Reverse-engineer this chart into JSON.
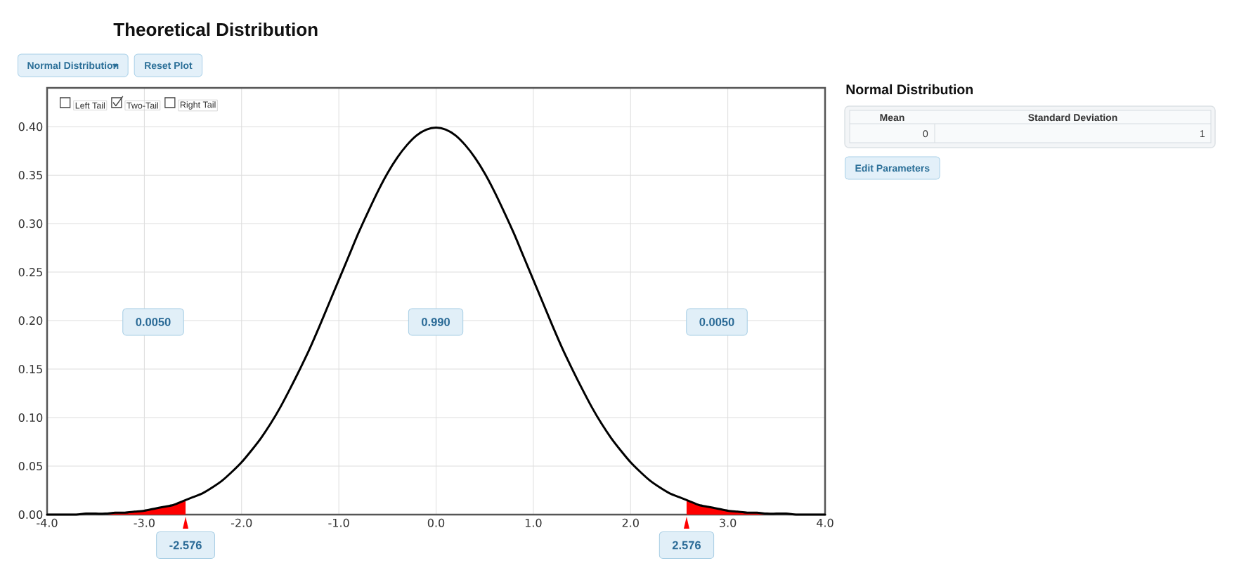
{
  "chart_data": [
    {
      "type": "line",
      "title": "Theoretical Distribution",
      "series": [
        {
          "color": "#000000",
          "x": [
            -4.0,
            -3.9,
            -3.8,
            -3.7,
            -3.6,
            -3.5,
            -3.4,
            -3.3,
            -3.2,
            -3.1,
            -3.0,
            -2.9,
            -2.8,
            -2.7,
            -2.6,
            -2.5,
            -2.4,
            -2.3,
            -2.2,
            -2.1,
            -2.0,
            -1.9,
            -1.8,
            -1.7,
            -1.6,
            -1.5,
            -1.4,
            -1.3,
            -1.2,
            -1.1,
            -1.0,
            -0.9,
            -0.8,
            -0.7,
            -0.6,
            -0.5,
            -0.4,
            -0.3,
            -0.2,
            -0.1,
            0.0,
            0.1,
            0.2,
            0.3,
            0.4,
            0.5,
            0.6,
            0.7,
            0.8,
            0.9,
            1.0,
            1.1,
            1.2,
            1.3,
            1.4,
            1.5,
            1.6,
            1.7,
            1.8,
            1.9,
            2.0,
            2.1,
            2.2,
            2.3,
            2.4,
            2.5,
            2.6,
            2.7,
            2.8,
            2.9,
            3.0,
            3.1,
            3.2,
            3.3,
            3.4,
            3.5,
            3.6,
            3.7,
            3.8,
            3.9,
            4.0
          ],
          "values": [
            0,
            0,
            0,
            0,
            0.001,
            0.001,
            0.001,
            0.002,
            0.002,
            0.003,
            0.004,
            0.006,
            0.008,
            0.01,
            0.014,
            0.018,
            0.022,
            0.028,
            0.035,
            0.044,
            0.054,
            0.066,
            0.079,
            0.094,
            0.111,
            0.13,
            0.15,
            0.171,
            0.194,
            0.218,
            0.242,
            0.266,
            0.29,
            0.312,
            0.333,
            0.352,
            0.368,
            0.381,
            0.391,
            0.397,
            0.399,
            0.397,
            0.391,
            0.381,
            0.368,
            0.352,
            0.333,
            0.312,
            0.29,
            0.266,
            0.242,
            0.218,
            0.194,
            0.171,
            0.15,
            0.13,
            0.111,
            0.094,
            0.079,
            0.066,
            0.054,
            0.044,
            0.035,
            0.028,
            0.022,
            0.018,
            0.014,
            0.01,
            0.008,
            0.006,
            0.004,
            0.003,
            0.002,
            0.002,
            0.001,
            0.001,
            0.001,
            0,
            0,
            0,
            0
          ]
        },
        {
          "type": "area",
          "color": "#ff0000",
          "x": [
            -4.0,
            -3.9,
            -3.8,
            -3.7,
            -3.6,
            -3.5,
            -3.4,
            -3.3,
            -3.2,
            -3.1,
            -3.0,
            -2.9,
            -2.8,
            -2.7,
            -2.6,
            -2.576
          ],
          "values": [
            0,
            0,
            0,
            0,
            0.001,
            0.001,
            0.001,
            0.002,
            0.002,
            0.003,
            0.004,
            0.006,
            0.008,
            0.01,
            0.014,
            0.014
          ]
        },
        {
          "type": "area",
          "color": "#ff0000",
          "x": [
            2.576,
            2.6,
            2.7,
            2.8,
            2.9,
            3.0,
            3.1,
            3.2,
            3.3,
            3.4,
            3.5,
            3.6,
            3.7,
            3.8,
            3.9,
            4.0
          ],
          "values": [
            0.014,
            0.014,
            0.01,
            0.008,
            0.006,
            0.004,
            0.003,
            0.002,
            0.002,
            0.001,
            0.001,
            0.001,
            0,
            0,
            0,
            0
          ]
        }
      ],
      "xlim": [
        -4,
        4
      ],
      "xticks": [
        {
          "value": -4,
          "label": "-4.0"
        },
        {
          "value": -3,
          "label": "-3.0"
        },
        {
          "value": -2,
          "label": "-2.0"
        },
        {
          "value": -1,
          "label": "-1.0"
        },
        {
          "value": 0,
          "label": "0.0"
        },
        {
          "value": 1,
          "label": "1.0"
        },
        {
          "value": 2,
          "label": "2.0"
        },
        {
          "value": 3,
          "label": "3.0"
        },
        {
          "value": 4,
          "label": "4.0"
        }
      ],
      "ylim": [
        0,
        0.44
      ],
      "yticks": [
        {
          "value": 0,
          "label": "0.00"
        },
        {
          "value": 0.05,
          "label": "0.05"
        },
        {
          "value": 0.1,
          "label": "0.10"
        },
        {
          "value": 0.15,
          "label": "0.15"
        },
        {
          "value": 0.2,
          "label": "0.20"
        },
        {
          "value": 0.25,
          "label": "0.25"
        },
        {
          "value": 0.3,
          "label": "0.30"
        },
        {
          "value": 0.35,
          "label": "0.35"
        },
        {
          "value": 0.4,
          "label": "0.40"
        }
      ],
      "grid": true,
      "annotations": [
        "Normal Distribution",
        "Reset Plot",
        "Left Tail",
        "Two-Tail",
        "Right Tail",
        "0.0050",
        "0.990",
        "0.0050",
        {
          "text": "-2.576",
          "x": -2.576,
          "y": 0
        },
        {
          "text": "2.576",
          "x": 2.576,
          "y": 0
        }
      ]
    },
    {
      "type": "other",
      "title": "Normal Distribution",
      "annotations": [
        "Mean",
        "Standard Deviation",
        "0",
        "1",
        "Edit Parameters"
      ]
    }
  ]
}
